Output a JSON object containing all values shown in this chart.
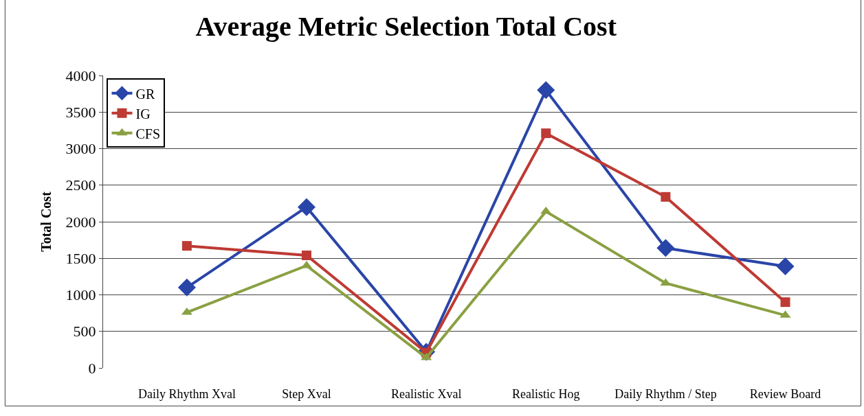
{
  "chart_data": {
    "type": "line",
    "title": "Average Metric Selection Total Cost",
    "ylabel": "Total Cost",
    "categories": [
      "Daily Rhythm Xval",
      "Step Xval",
      "Realistic Xval",
      "Realistic Hog",
      "Daily Rhythm / Step",
      "Review Board"
    ],
    "series": [
      {
        "name": "GR",
        "color": "#2a45a8",
        "marker": "diamond",
        "values": [
          1100,
          2200,
          220,
          3800,
          1640,
          1390
        ]
      },
      {
        "name": "IG",
        "color": "#be3a34",
        "marker": "square",
        "values": [
          1670,
          1540,
          210,
          3210,
          2340,
          900
        ]
      },
      {
        "name": "CFS",
        "color": "#8aa042",
        "marker": "triangle",
        "values": [
          760,
          1400,
          140,
          2140,
          1160,
          720
        ]
      }
    ],
    "ylim": [
      0,
      4000
    ],
    "yticks": [
      0,
      500,
      1000,
      1500,
      2000,
      2500,
      3000,
      3500,
      4000
    ],
    "grid": "y",
    "legend": "top left",
    "line_style": "solid"
  }
}
